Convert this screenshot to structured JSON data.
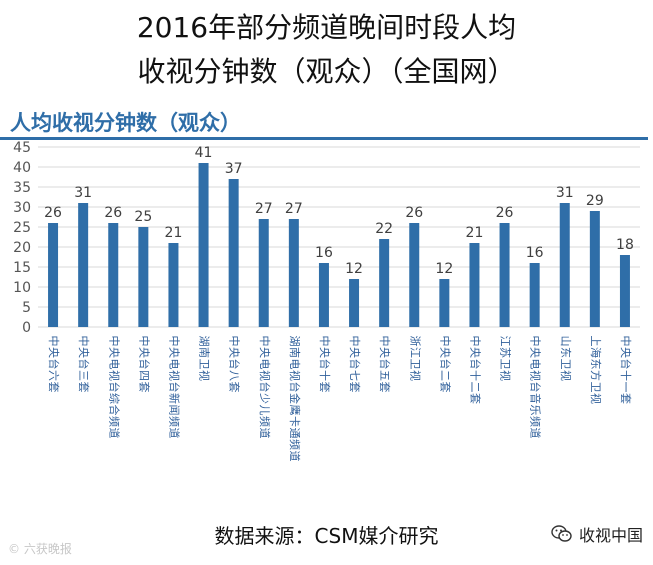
{
  "title": {
    "line1": "2016年部分频道晚间时段人均",
    "line2": "收视分钟数（观众）（全国网）"
  },
  "source_label": "数据来源：CSM媒介研究",
  "watermark_left": "© 六获晚报",
  "watermark_right": "收视中国",
  "colors": {
    "bar": "#2f6ea8",
    "header_text": "#2f6ea8",
    "header_line": "#2f6ea8",
    "grid": "#d9d9d9",
    "axis_text": "#555555",
    "value_text": "#404040",
    "category_text": "#2f5f9a"
  },
  "chart_data": {
    "type": "bar",
    "title": "人均收视分钟数（观众）",
    "categories": [
      "中央台六套",
      "中央台三套",
      "中央电视台综合频道",
      "中央台四套",
      "中央电视台新闻频道",
      "湖南卫视",
      "中央台八套",
      "中央电视台少儿频道",
      "湖南电视台金鹰卡通频道",
      "中央台十套",
      "中央台七套",
      "中央台五套",
      "浙江卫视",
      "中央台二套",
      "中央台十二套",
      "江苏卫视",
      "中央电视台音乐频道",
      "山东卫视",
      "上海东方卫视",
      "中央台十一套"
    ],
    "values": [
      26,
      31,
      26,
      25,
      21,
      41,
      37,
      27,
      27,
      16,
      12,
      22,
      26,
      12,
      21,
      26,
      16,
      31,
      29,
      18
    ],
    "ylim": [
      0,
      45
    ],
    "yticks": [
      0,
      5,
      10,
      15,
      20,
      25,
      30,
      35,
      40,
      45
    ],
    "grid": true,
    "xlabel": "",
    "ylabel": ""
  }
}
